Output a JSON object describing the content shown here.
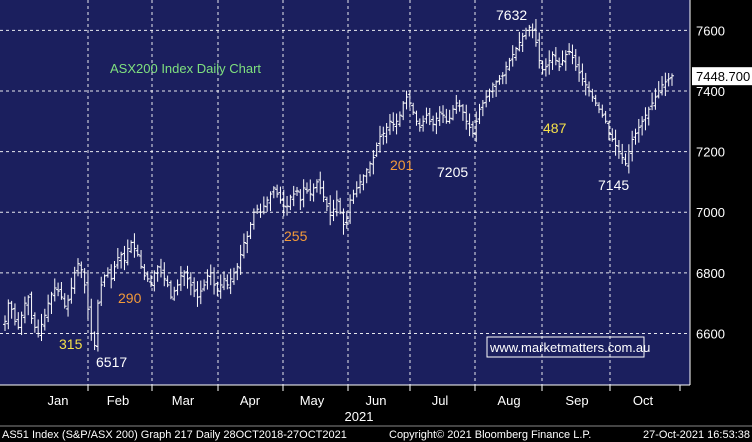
{
  "chart_data": {
    "type": "ohlc",
    "title": "ASX200 Index Daily Chart",
    "watermark": "www.marketmatters.com.au",
    "year_label": "2021",
    "last_price": "7448.700",
    "y_ticks": [
      6600,
      6800,
      7000,
      7200,
      7400,
      7600
    ],
    "ylim": [
      6430,
      7700
    ],
    "x_months": [
      "Jan",
      "Feb",
      "Mar",
      "Apr",
      "May",
      "Jun",
      "Jul",
      "Aug",
      "Sep",
      "Oct"
    ],
    "annotations": [
      {
        "text": "315",
        "color": "#f5e04a"
      },
      {
        "text": "6517",
        "color": "#ffffff"
      },
      {
        "text": "290",
        "color": "#f39a3a"
      },
      {
        "text": "255",
        "color": "#f39a3a"
      },
      {
        "text": "201",
        "color": "#f39a3a"
      },
      {
        "text": "7205",
        "color": "#ffffff"
      },
      {
        "text": "7632",
        "color": "#ffffff"
      },
      {
        "text": "487",
        "color": "#f5e04a"
      },
      {
        "text": "7145",
        "color": "#ffffff"
      }
    ],
    "series_close": [
      6640,
      6700,
      6680,
      6640,
      6620,
      6660,
      6700,
      6720,
      6650,
      6620,
      6600,
      6630,
      6660,
      6700,
      6730,
      6750,
      6740,
      6720,
      6690,
      6710,
      6750,
      6800,
      6830,
      6810,
      6760,
      6680,
      6600,
      6560,
      6700,
      6760,
      6790,
      6800,
      6780,
      6820,
      6850,
      6860,
      6840,
      6880,
      6900,
      6880,
      6860,
      6820,
      6790,
      6780,
      6760,
      6800,
      6820,
      6800,
      6780,
      6760,
      6720,
      6740,
      6760,
      6790,
      6800,
      6780,
      6760,
      6740,
      6720,
      6740,
      6760,
      6790,
      6800,
      6760,
      6740,
      6760,
      6780,
      6760,
      6780,
      6800,
      6820,
      6860,
      6900,
      6920,
      6960,
      7000,
      7010,
      7000,
      7020,
      7040,
      7060,
      7080,
      7060,
      7040,
      7020,
      7020,
      7050,
      7060,
      7070,
      7040,
      7080,
      7070,
      7060,
      7080,
      7100,
      7080,
      7050,
      7020,
      6990,
      7010,
      7040,
      7000,
      6960,
      6980,
      7040,
      7060,
      7080,
      7100,
      7120,
      7140,
      7160,
      7180,
      7220,
      7250,
      7260,
      7280,
      7300,
      7290,
      7300,
      7320,
      7360,
      7380,
      7360,
      7330,
      7300,
      7280,
      7300,
      7320,
      7300,
      7290,
      7310,
      7330,
      7320,
      7300,
      7310,
      7340,
      7360,
      7350,
      7330,
      7300,
      7280,
      7260,
      7300,
      7340,
      7360,
      7380,
      7400,
      7420,
      7430,
      7440,
      7450,
      7480,
      7500,
      7520,
      7540,
      7560,
      7580,
      7600,
      7610,
      7600,
      7560,
      7500,
      7470,
      7480,
      7500,
      7520,
      7500,
      7480,
      7500,
      7520,
      7530,
      7510,
      7480,
      7460,
      7440,
      7420,
      7400,
      7380,
      7360,
      7340,
      7320,
      7300,
      7260,
      7240,
      7220,
      7200,
      7180,
      7160,
      7200,
      7240,
      7260,
      7280,
      7300,
      7320,
      7340,
      7360,
      7380,
      7400,
      7420,
      7430,
      7440,
      7450
    ]
  },
  "footer": {
    "left": "AS51 Index (S&P/ASX 200) Graph 217  Daily 28OCT2018-27OCT2021",
    "center": "Copyright© 2021 Bloomberg Finance L.P.",
    "right": "27-Oct-2021 16:53:38"
  },
  "colors": {
    "plot_bg": "#1b1f5e",
    "grid": "#ffffff",
    "bar": "#ffffff",
    "title": "#7fe07f",
    "watermark_border": "#ffffff",
    "watermark_text": "#ffffff",
    "label_box": "#ffffff"
  }
}
